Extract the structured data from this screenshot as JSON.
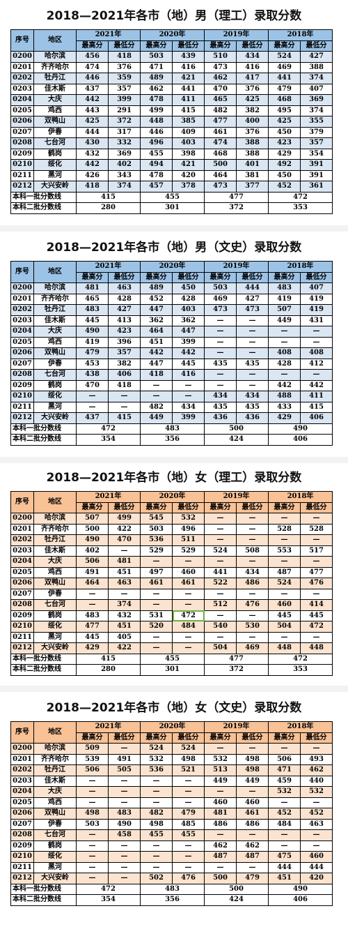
{
  "header_year": [
    "2021年",
    "2020年",
    "2019年",
    "2018年"
  ],
  "col_seq": "序号",
  "col_region": "地区",
  "col_max": "最高分",
  "col_min": "最低分",
  "sections": [
    {
      "title": "2018—2021年各市（地）男（理工）录取分数",
      "rows": [
        [
          "0200",
          "哈尔滨",
          "456",
          "418",
          "503",
          "439",
          "510",
          "434",
          "524",
          "427"
        ],
        [
          "0201",
          "齐齐哈尔",
          "474",
          "376",
          "471",
          "416",
          "473",
          "416",
          "469",
          "388"
        ],
        [
          "0202",
          "牡丹江",
          "446",
          "359",
          "489",
          "421",
          "462",
          "417",
          "441",
          "374"
        ],
        [
          "0203",
          "佳木斯",
          "437",
          "357",
          "462",
          "441",
          "470",
          "376",
          "479",
          "407"
        ],
        [
          "0204",
          "大庆",
          "442",
          "399",
          "478",
          "411",
          "465",
          "425",
          "468",
          "369"
        ],
        [
          "0205",
          "鸡西",
          "443",
          "291",
          "499",
          "415",
          "482",
          "382",
          "495",
          "374"
        ],
        [
          "0206",
          "双鸭山",
          "425",
          "372",
          "448",
          "385",
          "477",
          "400",
          "425",
          "355"
        ],
        [
          "0207",
          "伊春",
          "444",
          "317",
          "446",
          "409",
          "461",
          "376",
          "450",
          "379"
        ],
        [
          "0208",
          "七台河",
          "430",
          "332",
          "496",
          "403",
          "474",
          "388",
          "423",
          "357"
        ],
        [
          "0209",
          "鹤岗",
          "432",
          "369",
          "455",
          "398",
          "468",
          "388",
          "429",
          "354"
        ],
        [
          "0210",
          "绥化",
          "442",
          "402",
          "494",
          "421",
          "500",
          "401",
          "492",
          "391"
        ],
        [
          "0211",
          "黑河",
          "426",
          "343",
          "478",
          "420",
          "464",
          "381",
          "450",
          "391"
        ],
        [
          "0212",
          "大兴安岭",
          "418",
          "374",
          "457",
          "378",
          "473",
          "377",
          "452",
          "361"
        ]
      ],
      "line1_label": "本科一批分数线",
      "line1": [
        "415",
        "455",
        "477",
        "472"
      ],
      "line2_label": "本科二批分数线",
      "line2": [
        "280",
        "301",
        "372",
        "353"
      ]
    },
    {
      "title": "2018—2021年各市（地）男（文史）录取分数",
      "rows": [
        [
          "0200",
          "哈尔滨",
          "481",
          "463",
          "489",
          "450",
          "503",
          "444",
          "483",
          "407"
        ],
        [
          "0201",
          "齐齐哈尔",
          "465",
          "428",
          "452",
          "428",
          "469",
          "427",
          "419",
          "419"
        ],
        [
          "0202",
          "牡丹江",
          "483",
          "427",
          "447",
          "403",
          "473",
          "473",
          "507",
          "419"
        ],
        [
          "0203",
          "佳木斯",
          "445",
          "413",
          "362",
          "362",
          "—",
          "—",
          "449",
          "431"
        ],
        [
          "0204",
          "大庆",
          "490",
          "423",
          "464",
          "447",
          "—",
          "—",
          "—",
          "—"
        ],
        [
          "0205",
          "鸡西",
          "419",
          "396",
          "451",
          "399",
          "—",
          "—",
          "—",
          "—"
        ],
        [
          "0206",
          "双鸭山",
          "479",
          "357",
          "442",
          "442",
          "—",
          "—",
          "408",
          "408"
        ],
        [
          "0207",
          "伊春",
          "453",
          "382",
          "447",
          "445",
          "435",
          "435",
          "428",
          "412"
        ],
        [
          "0208",
          "七台河",
          "438",
          "406",
          "418",
          "416",
          "—",
          "—",
          "—",
          "—"
        ],
        [
          "0209",
          "鹤岗",
          "470",
          "418",
          "—",
          "—",
          "—",
          "—",
          "442",
          "442"
        ],
        [
          "0210",
          "绥化",
          "—",
          "—",
          "—",
          "—",
          "434",
          "434",
          "488",
          "411"
        ],
        [
          "0211",
          "黑河",
          "—",
          "—",
          "482",
          "434",
          "435",
          "435",
          "433",
          "415"
        ],
        [
          "0212",
          "大兴安岭",
          "437",
          "415",
          "449",
          "399",
          "436",
          "436",
          "429",
          "406"
        ]
      ],
      "line1_label": "本科一批分数线",
      "line1": [
        "472",
        "483",
        "500",
        "490"
      ],
      "line2_label": "本科二批分数线",
      "line2": [
        "354",
        "356",
        "424",
        "406"
      ]
    },
    {
      "title": "2018—2021年各市（地）女（理工）录取分数",
      "rows": [
        [
          "0200",
          "哈尔滨",
          "507",
          "499",
          "545",
          "532",
          "—",
          "—",
          "—",
          "—"
        ],
        [
          "0201",
          "齐齐哈尔",
          "500",
          "422",
          "503",
          "496",
          "—",
          "—",
          "528",
          "528"
        ],
        [
          "0202",
          "牡丹江",
          "490",
          "470",
          "536",
          "511",
          "—",
          "—",
          "—",
          "—"
        ],
        [
          "0203",
          "佳木斯",
          "402",
          "—",
          "529",
          "529",
          "524",
          "508",
          "553",
          "517"
        ],
        [
          "0204",
          "大庆",
          "506",
          "481",
          "—",
          "—",
          "—",
          "—",
          "—",
          "—"
        ],
        [
          "0205",
          "鸡西",
          "491",
          "451",
          "497",
          "460",
          "441",
          "434",
          "487",
          "477"
        ],
        [
          "0206",
          "双鸭山",
          "464",
          "463",
          "461",
          "461",
          "522",
          "486",
          "524",
          "476"
        ],
        [
          "0207",
          "伊春",
          "—",
          "—",
          "—",
          "—",
          "—",
          "—",
          "—",
          "—"
        ],
        [
          "0208",
          "七台河",
          "—",
          "374",
          "—",
          "—",
          "512",
          "476",
          "460",
          "414"
        ],
        [
          "0209",
          "鹤岗",
          "483",
          "432",
          "531",
          "472",
          "—",
          "—",
          "445",
          "445"
        ],
        [
          "0210",
          "绥化",
          "477",
          "451",
          "520",
          "484",
          "540",
          "530",
          "504",
          "472"
        ],
        [
          "0211",
          "黑河",
          "445",
          "405",
          "—",
          "—",
          "—",
          "—",
          "—",
          "—"
        ],
        [
          "0212",
          "大兴安岭",
          "429",
          "422",
          "—",
          "—",
          "504",
          "469",
          "448",
          "448"
        ]
      ],
      "line1_label": "本科一批分数线",
      "line1": [
        "415",
        "455",
        "477",
        "472"
      ],
      "line2_label": "本科二批分数线",
      "line2": [
        "280",
        "301",
        "372",
        "353"
      ]
    },
    {
      "title": "2018—2021年各市（地）女（文史）录取分数",
      "rows": [
        [
          "0200",
          "哈尔滨",
          "509",
          "—",
          "524",
          "524",
          "—",
          "—",
          "—",
          "—"
        ],
        [
          "0201",
          "齐齐哈尔",
          "539",
          "491",
          "532",
          "498",
          "532",
          "498",
          "506",
          "493"
        ],
        [
          "0202",
          "牡丹江",
          "506",
          "505",
          "536",
          "521",
          "513",
          "498",
          "471",
          "462"
        ],
        [
          "0203",
          "佳木斯",
          "—",
          "—",
          "—",
          "—",
          "449",
          "449",
          "459",
          "440"
        ],
        [
          "0204",
          "大庆",
          "—",
          "—",
          "—",
          "—",
          "—",
          "—",
          "532",
          "532"
        ],
        [
          "0205",
          "鸡西",
          "—",
          "—",
          "—",
          "—",
          "460",
          "460",
          "—",
          "—"
        ],
        [
          "0206",
          "双鸭山",
          "498",
          "483",
          "482",
          "479",
          "481",
          "461",
          "452",
          "452"
        ],
        [
          "0207",
          "伊春",
          "503",
          "490",
          "498",
          "485",
          "486",
          "486",
          "484",
          "463"
        ],
        [
          "0208",
          "七台河",
          "—",
          "458",
          "455",
          "455",
          "—",
          "—",
          "—",
          "—"
        ],
        [
          "0209",
          "鹤岗",
          "—",
          "—",
          "—",
          "—",
          "462",
          "462",
          "—",
          "—"
        ],
        [
          "0210",
          "绥化",
          "—",
          "—",
          "—",
          "—",
          "487",
          "487",
          "475",
          "460"
        ],
        [
          "0211",
          "黑河",
          "—",
          "—",
          "—",
          "—",
          "—",
          "—",
          "444",
          "444"
        ],
        [
          "0212",
          "大兴安岭",
          "—",
          "—",
          "502",
          "476",
          "500",
          "479",
          "451",
          "420"
        ]
      ],
      "line1_label": "本科一批分数线",
      "line1": [
        "472",
        "483",
        "500",
        "490"
      ],
      "line2_label": "本科二批分数线",
      "line2": [
        "354",
        "356",
        "424",
        "406"
      ]
    }
  ],
  "theme": {
    "blue_header": "#9cc3e6",
    "blue_stripe": "#dae6f2",
    "orange_header": "#f8c196",
    "orange_stripe": "#fbe3cf",
    "highlight": "#70ad47"
  }
}
